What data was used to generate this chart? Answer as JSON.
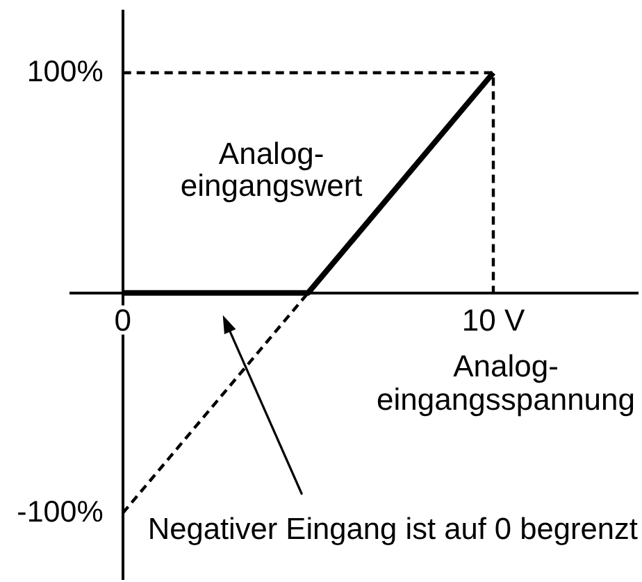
{
  "chart_data": {
    "type": "line",
    "xlabel": "Analog-\neingangsspannung",
    "ylabel": "Analog-\neingangswert",
    "xlim": [
      -1.4,
      13.9
    ],
    "xticks": [
      {
        "value": 0,
        "label": "0"
      },
      {
        "value": 10,
        "label": "10 V"
      }
    ],
    "ylim": [
      -130,
      128
    ],
    "yticks": [
      {
        "value": -100,
        "label": "-100%"
      },
      {
        "value": 100,
        "label": "100%"
      }
    ],
    "series": [
      {
        "color": "#000000",
        "x": [
          0,
          5,
          10
        ],
        "values": [
          0,
          0,
          100
        ],
        "line_style": "solid"
      },
      {
        "color": "#000000",
        "x": [
          0,
          5
        ],
        "values": [
          -100,
          0
        ],
        "line_style": "dashed"
      },
      {
        "color": "#000000",
        "x": [
          0,
          10,
          10
        ],
        "values": [
          100,
          100,
          0
        ],
        "line_style": "dashed"
      }
    ],
    "annotations": [
      "Negativer Eingang ist auf 0 begrenzt"
    ]
  }
}
